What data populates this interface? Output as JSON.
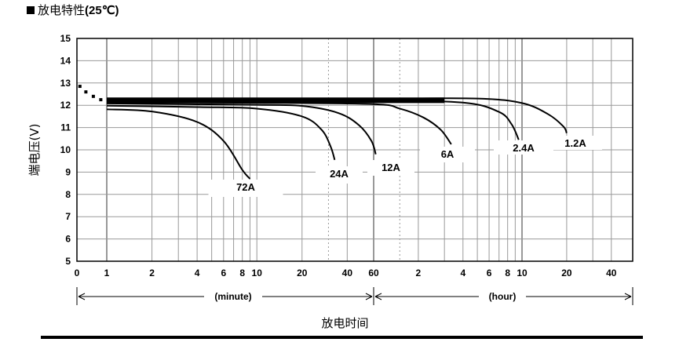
{
  "title": {
    "marker": "■",
    "prefix": "放电特性",
    "suffix": "(25℃)"
  },
  "chart_data": {
    "type": "line",
    "title": "放电特性(25℃)",
    "xlabel": "放电时间",
    "ylabel": "端电压(V)",
    "x_scale": "log",
    "ylim": [
      5,
      15
    ],
    "y_ticks": [
      "5",
      "6",
      "7",
      "8",
      "9",
      "10",
      "11",
      "12",
      "13",
      "14",
      "15"
    ],
    "grid": true,
    "minute_ticks": [
      "0",
      "1",
      "2",
      "4",
      "6",
      "8",
      "10",
      "20",
      "40",
      "60"
    ],
    "hour_ticks": [
      "2",
      "4",
      "6",
      "8",
      "10",
      "20",
      "40"
    ],
    "range_labels": {
      "minute": "(minute)",
      "hour": "(hour)"
    },
    "series": [
      {
        "name": "72A",
        "points": [
          [
            1,
            11.82
          ],
          [
            2,
            11.72
          ],
          [
            4,
            11.25
          ],
          [
            6,
            10.4
          ],
          [
            8,
            9.1
          ],
          [
            9,
            8.7
          ]
        ]
      },
      {
        "name": "24A",
        "points": [
          [
            1,
            11.98
          ],
          [
            4,
            11.92
          ],
          [
            10,
            11.85
          ],
          [
            20,
            11.5
          ],
          [
            27,
            10.9
          ],
          [
            31,
            10.15
          ],
          [
            33,
            9.55
          ]
        ]
      },
      {
        "name": "12A",
        "points": [
          [
            1,
            12.08
          ],
          [
            10,
            12.02
          ],
          [
            20,
            11.97
          ],
          [
            35,
            11.65
          ],
          [
            48,
            11.1
          ],
          [
            58,
            10.4
          ],
          [
            62,
            9.8
          ]
        ]
      },
      {
        "name": "6A",
        "points": [
          [
            1,
            12.13
          ],
          [
            10,
            12.11
          ],
          [
            60,
            12.05
          ],
          [
            90,
            11.85
          ],
          [
            130,
            11.45
          ],
          [
            170,
            10.9
          ],
          [
            200,
            10.25
          ]
        ]
      },
      {
        "name": "2.4A",
        "points": [
          [
            1,
            12.2
          ],
          [
            60,
            12.2
          ],
          [
            240,
            12.12
          ],
          [
            420,
            11.7
          ],
          [
            510,
            11.15
          ],
          [
            570,
            10.45
          ]
        ]
      },
      {
        "name": "1.2A",
        "points": [
          [
            1,
            12.3
          ],
          [
            60,
            12.3
          ],
          [
            300,
            12.3
          ],
          [
            600,
            12.1
          ],
          [
            900,
            11.6
          ],
          [
            1140,
            11.05
          ],
          [
            1200,
            10.75
          ]
        ]
      }
    ],
    "initial_dots": [
      [
        0.1,
        12.85
      ],
      [
        0.3,
        12.6
      ],
      [
        0.55,
        12.4
      ],
      [
        0.8,
        12.25
      ]
    ]
  },
  "colors": {
    "grid": "#999999",
    "curve": "#000000",
    "axis": "#000000"
  }
}
